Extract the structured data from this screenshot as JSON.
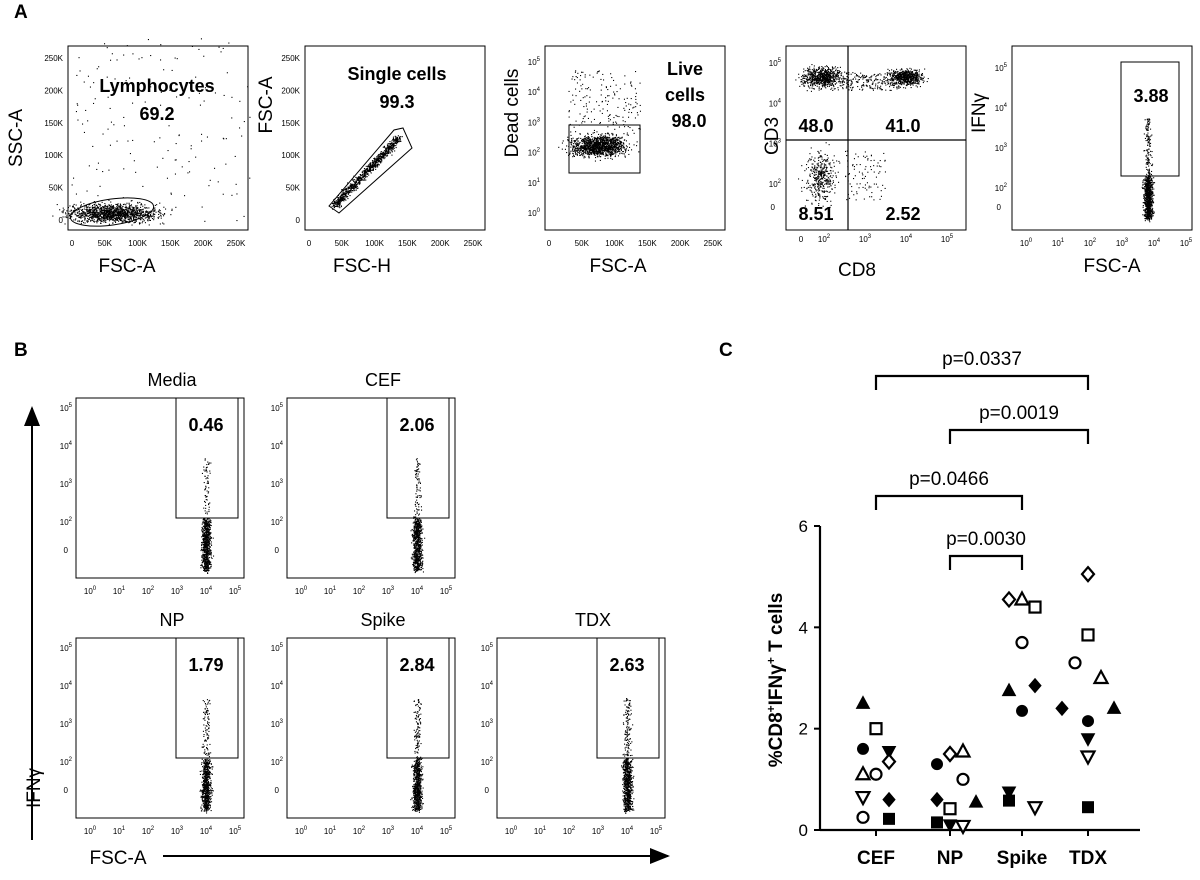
{
  "panel_letters": {
    "a": "A",
    "b": "B",
    "c": "C"
  },
  "tick_labels": {
    "linear": [
      "0",
      "50K",
      "100K",
      "150K",
      "200K",
      "250K"
    ],
    "log_x": [
      "10",
      "10",
      "10",
      "10",
      "10",
      "10"
    ],
    "log_x_exp": [
      "0",
      "1",
      "2",
      "3",
      "4",
      "5"
    ],
    "log_y": [
      "10",
      "10",
      "10",
      "10"
    ],
    "log_y_exp": [
      "2",
      "3",
      "4",
      "5"
    ],
    "log_y_full": [
      "10",
      "10",
      "10",
      "10",
      "10",
      "10"
    ],
    "log_y_full_exp": [
      "0",
      "1",
      "2",
      "3",
      "4",
      "5"
    ],
    "zero": "0"
  },
  "panel_a": [
    {
      "title": "Lymphocytes",
      "value": "69.2",
      "xlabel": "FSC-A",
      "ylabel": "SSC-A"
    },
    {
      "title": "Single cells",
      "value": "99.3",
      "xlabel": "FSC-H",
      "ylabel": "FSC-A"
    },
    {
      "title_line1": "Live",
      "title_line2": "cells",
      "value": "98.0",
      "xlabel": "FSC-A",
      "ylabel": "Dead cells"
    },
    {
      "xlabel": "CD8",
      "ylabel": "CD3",
      "quadrants": [
        "48.0",
        "41.0",
        "8.51",
        "2.52"
      ]
    },
    {
      "value": "3.88",
      "xlabel": "FSC-A",
      "ylabel": "IFNγ"
    }
  ],
  "panel_b": {
    "xlabel": "FSC-A",
    "ylabel": "IFNγ",
    "plots": [
      {
        "title": "Media",
        "value": "0.46"
      },
      {
        "title": "CEF",
        "value": "2.06"
      },
      {
        "title": "NP",
        "value": "1.79"
      },
      {
        "title": "Spike",
        "value": "2.84"
      },
      {
        "title": "TDX",
        "value": "2.63"
      }
    ]
  },
  "chart_data": {
    "type": "scatter",
    "title": "",
    "xlabel": "",
    "ylabel_parts": [
      "%CD8",
      "+",
      "IFNγ",
      "+",
      " T cells"
    ],
    "ylabel": "%CD8+IFNγ+ T cells",
    "categories": [
      "CEF",
      "NP",
      "Spike",
      "TDX"
    ],
    "yticks": [
      "0",
      "2",
      "4",
      "6"
    ],
    "ylim": [
      0,
      6
    ],
    "points": [
      {
        "cat": 0,
        "dx": -1,
        "y": 2.5,
        "marker": "triangle",
        "fill": "filled"
      },
      {
        "cat": 0,
        "dx": 0,
        "y": 2.0,
        "marker": "square",
        "fill": "open"
      },
      {
        "cat": 0,
        "dx": -1,
        "y": 1.6,
        "marker": "circle",
        "fill": "filled"
      },
      {
        "cat": 0,
        "dx": 1,
        "y": 1.55,
        "marker": "triangle-down",
        "fill": "filled"
      },
      {
        "cat": 0,
        "dx": 1,
        "y": 1.35,
        "marker": "diamond",
        "fill": "open"
      },
      {
        "cat": 0,
        "dx": 0,
        "y": 1.1,
        "marker": "circle",
        "fill": "open"
      },
      {
        "cat": 0,
        "dx": -1,
        "y": 1.1,
        "marker": "triangle",
        "fill": "open"
      },
      {
        "cat": 0,
        "dx": -1,
        "y": 0.65,
        "marker": "triangle-down",
        "fill": "open"
      },
      {
        "cat": 0,
        "dx": 1,
        "y": 0.6,
        "marker": "diamond",
        "fill": "filled"
      },
      {
        "cat": 0,
        "dx": -1,
        "y": 0.25,
        "marker": "circle",
        "fill": "open"
      },
      {
        "cat": 0,
        "dx": 1,
        "y": 0.22,
        "marker": "square",
        "fill": "filled"
      },
      {
        "cat": 1,
        "dx": 0,
        "y": 1.5,
        "marker": "diamond",
        "fill": "open"
      },
      {
        "cat": 1,
        "dx": 1,
        "y": 1.55,
        "marker": "triangle",
        "fill": "open"
      },
      {
        "cat": 1,
        "dx": -1,
        "y": 1.3,
        "marker": "circle",
        "fill": "filled"
      },
      {
        "cat": 1,
        "dx": 1,
        "y": 1.0,
        "marker": "circle",
        "fill": "open"
      },
      {
        "cat": 1,
        "dx": -1,
        "y": 0.6,
        "marker": "diamond",
        "fill": "filled"
      },
      {
        "cat": 1,
        "dx": 2,
        "y": 0.55,
        "marker": "triangle",
        "fill": "filled"
      },
      {
        "cat": 1,
        "dx": 0,
        "y": 0.42,
        "marker": "square",
        "fill": "open"
      },
      {
        "cat": 1,
        "dx": -1,
        "y": 0.15,
        "marker": "square",
        "fill": "filled"
      },
      {
        "cat": 1,
        "dx": 0,
        "y": 0.1,
        "marker": "triangle-down",
        "fill": "filled"
      },
      {
        "cat": 1,
        "dx": 1,
        "y": 0.08,
        "marker": "triangle-down",
        "fill": "open"
      },
      {
        "cat": 2,
        "dx": -1,
        "y": 4.55,
        "marker": "diamond",
        "fill": "open"
      },
      {
        "cat": 2,
        "dx": 0,
        "y": 4.55,
        "marker": "triangle",
        "fill": "open"
      },
      {
        "cat": 2,
        "dx": 1,
        "y": 4.4,
        "marker": "square",
        "fill": "open"
      },
      {
        "cat": 2,
        "dx": 0,
        "y": 3.7,
        "marker": "circle",
        "fill": "open"
      },
      {
        "cat": 2,
        "dx": 1,
        "y": 2.85,
        "marker": "diamond",
        "fill": "filled"
      },
      {
        "cat": 2,
        "dx": -1,
        "y": 2.75,
        "marker": "triangle",
        "fill": "filled"
      },
      {
        "cat": 2,
        "dx": 0,
        "y": 2.35,
        "marker": "circle",
        "fill": "filled"
      },
      {
        "cat": 2,
        "dx": -1,
        "y": 0.75,
        "marker": "triangle-down",
        "fill": "filled"
      },
      {
        "cat": 2,
        "dx": -1,
        "y": 0.58,
        "marker": "square",
        "fill": "filled"
      },
      {
        "cat": 2,
        "dx": 1,
        "y": 0.45,
        "marker": "triangle-down",
        "fill": "open"
      },
      {
        "cat": 3,
        "dx": 0,
        "y": 5.05,
        "marker": "diamond",
        "fill": "open"
      },
      {
        "cat": 3,
        "dx": 0,
        "y": 3.85,
        "marker": "square",
        "fill": "open"
      },
      {
        "cat": 3,
        "dx": -1,
        "y": 3.3,
        "marker": "circle",
        "fill": "open"
      },
      {
        "cat": 3,
        "dx": 1,
        "y": 3.0,
        "marker": "triangle",
        "fill": "open"
      },
      {
        "cat": 3,
        "dx": -2,
        "y": 2.4,
        "marker": "diamond",
        "fill": "filled"
      },
      {
        "cat": 3,
        "dx": 2,
        "y": 2.4,
        "marker": "triangle",
        "fill": "filled"
      },
      {
        "cat": 3,
        "dx": 0,
        "y": 2.15,
        "marker": "circle",
        "fill": "filled"
      },
      {
        "cat": 3,
        "dx": 0,
        "y": 1.8,
        "marker": "triangle-down",
        "fill": "filled"
      },
      {
        "cat": 3,
        "dx": 0,
        "y": 1.45,
        "marker": "triangle-down",
        "fill": "open"
      },
      {
        "cat": 3,
        "dx": 0,
        "y": 0.45,
        "marker": "square",
        "fill": "filled"
      }
    ],
    "comparisons": [
      {
        "from": 0,
        "to": 3,
        "label": "p=0.0337",
        "level": 4
      },
      {
        "from": 1,
        "to": 3,
        "label": "p=0.0019",
        "level": 3
      },
      {
        "from": 0,
        "to": 2,
        "label": "p=0.0466",
        "level": 2
      },
      {
        "from": 1,
        "to": 2,
        "label": "p=0.0030",
        "level": 1
      }
    ]
  }
}
